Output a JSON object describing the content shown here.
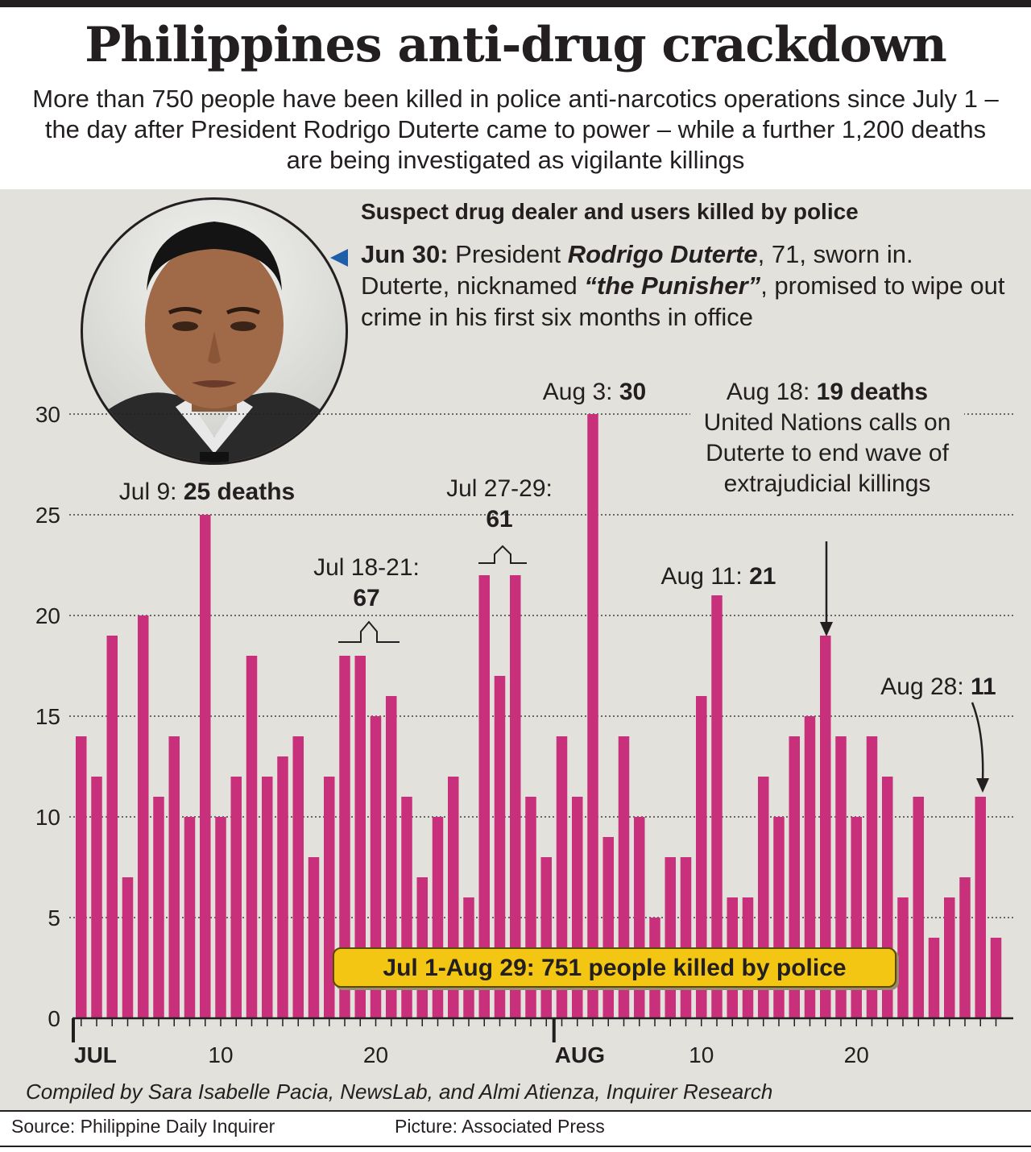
{
  "header": {
    "title": "Philippines anti-drug crackdown",
    "subtitle": "More than 750 people have been killed in police anti-narcotics operations since July 1 – the day after President Rodrigo Duterte came to power – while a further 1,200 deaths are being investigated as vigilante killings"
  },
  "note": {
    "date": "Jun 30:",
    "t1": " President ",
    "name": "Rodrigo Duterte",
    "t2": ", 71, sworn in. Duterte, nicknamed ",
    "nickname": "“the Punisher”",
    "t3": ", promised to wipe out crime in his first six months in office"
  },
  "callouts": {
    "jul9_date": "Jul 9: ",
    "jul9_val": "25 deaths",
    "jul18_date": "Jul 18-21:",
    "jul18_val": "67",
    "jul27_date": "Jul 27-29:",
    "jul27_val": "61",
    "aug3_date": "Aug 3: ",
    "aug3_val": "30",
    "aug11_date": "Aug 11: ",
    "aug11_val": "21",
    "aug18_date": "Aug 18: ",
    "aug18_val": "19 deaths",
    "aug18_text": "United Nations calls on Duterte to end wave of extrajudicial killings",
    "aug28_date": "Aug 28: ",
    "aug28_val": "11"
  },
  "total_label": "Jul 1-Aug 29: 751 people killed by police",
  "credits": "Compiled by Sara Isabelle Pacia, NewsLab, and Almi Atienza, Inquirer Research",
  "source": "Source: Philippine Daily Inquirer",
  "picture": "Picture: Associated Press",
  "colors": {
    "bar": "#c9307b",
    "panel": "#e2e1db",
    "highlight": "#f3c613",
    "arrow": "#1f5fa8"
  },
  "chart_data": {
    "type": "bar",
    "title": "Suspect drug dealer and users killed by police",
    "xlabel": "",
    "ylabel": "",
    "ylim": [
      0,
      30
    ],
    "yticks": [
      0,
      5,
      10,
      15,
      20,
      25,
      30
    ],
    "grid": true,
    "x_tick_labels": [
      {
        "day": 1,
        "label": "JUL",
        "bold": true
      },
      {
        "day": 10,
        "label": "10",
        "bold": false
      },
      {
        "day": 20,
        "label": "20",
        "bold": false
      },
      {
        "day": 32,
        "label": "AUG",
        "bold": true
      },
      {
        "day": 41,
        "label": "10",
        "bold": false
      },
      {
        "day": 51,
        "label": "20",
        "bold": false
      }
    ],
    "categories": [
      "Jul 1",
      "Jul 2",
      "Jul 3",
      "Jul 4",
      "Jul 5",
      "Jul 6",
      "Jul 7",
      "Jul 8",
      "Jul 9",
      "Jul 10",
      "Jul 11",
      "Jul 12",
      "Jul 13",
      "Jul 14",
      "Jul 15",
      "Jul 16",
      "Jul 17",
      "Jul 18",
      "Jul 19",
      "Jul 20",
      "Jul 21",
      "Jul 22",
      "Jul 23",
      "Jul 24",
      "Jul 25",
      "Jul 26",
      "Jul 27",
      "Jul 28",
      "Jul 29",
      "Jul 30",
      "Jul 31",
      "Aug 1",
      "Aug 2",
      "Aug 3",
      "Aug 4",
      "Aug 5",
      "Aug 6",
      "Aug 7",
      "Aug 8",
      "Aug 9",
      "Aug 10",
      "Aug 11",
      "Aug 12",
      "Aug 13",
      "Aug 14",
      "Aug 15",
      "Aug 16",
      "Aug 17",
      "Aug 18",
      "Aug 19",
      "Aug 20",
      "Aug 21",
      "Aug 22",
      "Aug 23",
      "Aug 24",
      "Aug 25",
      "Aug 26",
      "Aug 27",
      "Aug 28",
      "Aug 29"
    ],
    "values": [
      14,
      12,
      19,
      7,
      20,
      11,
      14,
      10,
      25,
      10,
      12,
      18,
      12,
      13,
      14,
      8,
      12,
      18,
      18,
      15,
      16,
      11,
      7,
      10,
      12,
      6,
      22,
      17,
      22,
      11,
      8,
      14,
      11,
      30,
      9,
      14,
      10,
      5,
      8,
      8,
      16,
      21,
      6,
      6,
      12,
      10,
      14,
      15,
      19,
      14,
      10,
      14,
      12,
      6,
      11,
      4,
      6,
      7,
      11,
      4
    ]
  }
}
